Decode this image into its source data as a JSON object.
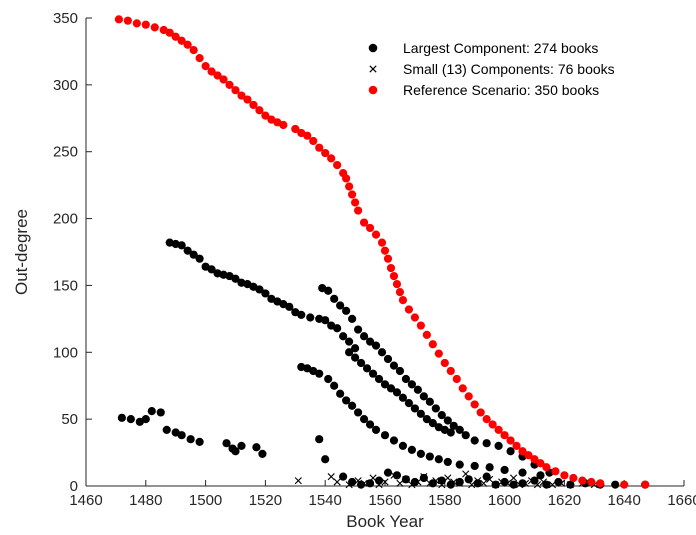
{
  "chart_data": {
    "type": "scatter",
    "xlabel": "Book Year",
    "ylabel": "Out-degree",
    "xlim": [
      1460,
      1660
    ],
    "ylim": [
      0,
      350
    ],
    "xticks": [
      1460,
      1480,
      1500,
      1520,
      1540,
      1560,
      1580,
      1600,
      1620,
      1640,
      1660
    ],
    "yticks": [
      0,
      50,
      100,
      150,
      200,
      250,
      300,
      350
    ],
    "grid": false,
    "legend_position": "top-right",
    "series": [
      {
        "name": "Largest Component: 274 books",
        "marker": "dot",
        "color": "#000000",
        "points": [
          [
            1472,
            51
          ],
          [
            1475,
            50
          ],
          [
            1478,
            48
          ],
          [
            1480,
            50
          ],
          [
            1482,
            56
          ],
          [
            1485,
            55
          ],
          [
            1487,
            42
          ],
          [
            1490,
            40
          ],
          [
            1492,
            38
          ],
          [
            1495,
            35
          ],
          [
            1498,
            33
          ],
          [
            1507,
            32
          ],
          [
            1509,
            28
          ],
          [
            1510,
            26
          ],
          [
            1512,
            30
          ],
          [
            1517,
            29
          ],
          [
            1519,
            24
          ],
          [
            1488,
            182
          ],
          [
            1490,
            181
          ],
          [
            1492,
            180
          ],
          [
            1494,
            176
          ],
          [
            1496,
            173
          ],
          [
            1498,
            170
          ],
          [
            1500,
            164
          ],
          [
            1502,
            162
          ],
          [
            1504,
            159
          ],
          [
            1506,
            158
          ],
          [
            1508,
            157
          ],
          [
            1510,
            155
          ],
          [
            1512,
            152
          ],
          [
            1514,
            151
          ],
          [
            1516,
            149
          ],
          [
            1518,
            147
          ],
          [
            1520,
            144
          ],
          [
            1522,
            140
          ],
          [
            1524,
            138
          ],
          [
            1526,
            136
          ],
          [
            1528,
            134
          ],
          [
            1530,
            130
          ],
          [
            1532,
            128
          ],
          [
            1535,
            126
          ],
          [
            1538,
            125
          ],
          [
            1540,
            124
          ],
          [
            1542,
            120
          ],
          [
            1544,
            118
          ],
          [
            1546,
            112
          ],
          [
            1548,
            108
          ],
          [
            1550,
            103
          ],
          [
            1539,
            148
          ],
          [
            1541,
            146
          ],
          [
            1543,
            140
          ],
          [
            1545,
            135
          ],
          [
            1547,
            131
          ],
          [
            1549,
            125
          ],
          [
            1551,
            117
          ],
          [
            1553,
            112
          ],
          [
            1555,
            108
          ],
          [
            1557,
            105
          ],
          [
            1559,
            100
          ],
          [
            1561,
            95
          ],
          [
            1563,
            90
          ],
          [
            1565,
            86
          ],
          [
            1567,
            80
          ],
          [
            1569,
            76
          ],
          [
            1571,
            72
          ],
          [
            1573,
            67
          ],
          [
            1575,
            63
          ],
          [
            1577,
            58
          ],
          [
            1579,
            53
          ],
          [
            1581,
            49
          ],
          [
            1583,
            45
          ],
          [
            1585,
            42
          ],
          [
            1587,
            38
          ],
          [
            1590,
            34
          ],
          [
            1594,
            32
          ],
          [
            1598,
            30
          ],
          [
            1602,
            26
          ],
          [
            1606,
            22
          ],
          [
            1610,
            16
          ],
          [
            1615,
            10
          ],
          [
            1532,
            89
          ],
          [
            1534,
            88
          ],
          [
            1536,
            86
          ],
          [
            1538,
            84
          ],
          [
            1541,
            80
          ],
          [
            1543,
            75
          ],
          [
            1545,
            69
          ],
          [
            1547,
            64
          ],
          [
            1549,
            60
          ],
          [
            1551,
            55
          ],
          [
            1553,
            50
          ],
          [
            1555,
            46
          ],
          [
            1557,
            42
          ],
          [
            1560,
            38
          ],
          [
            1563,
            34
          ],
          [
            1566,
            30
          ],
          [
            1569,
            27
          ],
          [
            1572,
            24
          ],
          [
            1575,
            22
          ],
          [
            1578,
            20
          ],
          [
            1581,
            18
          ],
          [
            1585,
            16
          ],
          [
            1590,
            15
          ],
          [
            1595,
            14
          ],
          [
            1600,
            12
          ],
          [
            1606,
            10
          ],
          [
            1612,
            8
          ],
          [
            1548,
            100
          ],
          [
            1550,
            96
          ],
          [
            1552,
            92
          ],
          [
            1554,
            88
          ],
          [
            1556,
            84
          ],
          [
            1558,
            80
          ],
          [
            1560,
            76
          ],
          [
            1562,
            73
          ],
          [
            1564,
            70
          ],
          [
            1566,
            66
          ],
          [
            1568,
            62
          ],
          [
            1570,
            58
          ],
          [
            1572,
            54
          ],
          [
            1574,
            50
          ],
          [
            1576,
            47
          ],
          [
            1578,
            44
          ],
          [
            1580,
            42
          ],
          [
            1582,
            40
          ],
          [
            1538,
            35
          ],
          [
            1540,
            20
          ],
          [
            1546,
            7
          ],
          [
            1549,
            3
          ],
          [
            1552,
            1
          ],
          [
            1555,
            2
          ],
          [
            1558,
            4
          ],
          [
            1561,
            10
          ],
          [
            1564,
            8
          ],
          [
            1567,
            5
          ],
          [
            1570,
            3
          ],
          [
            1573,
            6
          ],
          [
            1576,
            2
          ],
          [
            1579,
            4
          ],
          [
            1582,
            1
          ],
          [
            1585,
            3
          ],
          [
            1588,
            5
          ],
          [
            1591,
            2
          ],
          [
            1594,
            7
          ],
          [
            1597,
            1
          ],
          [
            1600,
            3
          ],
          [
            1603,
            1
          ],
          [
            1606,
            2
          ],
          [
            1610,
            4
          ],
          [
            1614,
            1
          ],
          [
            1618,
            3
          ],
          [
            1622,
            1
          ],
          [
            1627,
            2
          ],
          [
            1632,
            1
          ],
          [
            1637,
            1
          ],
          [
            1647,
            1
          ]
        ]
      },
      {
        "name": "Small (13) Components: 76 books",
        "marker": "x",
        "color": "#000000",
        "points": [
          [
            1531,
            4
          ],
          [
            1542,
            7
          ],
          [
            1544,
            3
          ],
          [
            1548,
            1
          ],
          [
            1551,
            4
          ],
          [
            1553,
            2
          ],
          [
            1556,
            6
          ],
          [
            1558,
            1
          ],
          [
            1560,
            3
          ],
          [
            1563,
            8
          ],
          [
            1565,
            2
          ],
          [
            1567,
            5
          ],
          [
            1569,
            1
          ],
          [
            1571,
            3
          ],
          [
            1573,
            7
          ],
          [
            1575,
            2
          ],
          [
            1577,
            4
          ],
          [
            1579,
            1
          ],
          [
            1581,
            6
          ],
          [
            1583,
            3
          ],
          [
            1585,
            2
          ],
          [
            1587,
            9
          ],
          [
            1589,
            1
          ],
          [
            1591,
            4
          ],
          [
            1593,
            2
          ],
          [
            1595,
            5
          ],
          [
            1597,
            1
          ],
          [
            1599,
            3
          ],
          [
            1601,
            2
          ],
          [
            1603,
            6
          ],
          [
            1605,
            1
          ],
          [
            1607,
            2
          ],
          [
            1609,
            4
          ],
          [
            1611,
            1
          ],
          [
            1613,
            3
          ],
          [
            1616,
            1
          ],
          [
            1619,
            2
          ],
          [
            1622,
            1
          ],
          [
            1626,
            2
          ],
          [
            1630,
            1
          ]
        ]
      },
      {
        "name": "Reference Scenario: 350 books",
        "marker": "dot",
        "color": "#ff0000",
        "points": [
          [
            1471,
            349
          ],
          [
            1474,
            348
          ],
          [
            1477,
            346
          ],
          [
            1480,
            345
          ],
          [
            1483,
            343
          ],
          [
            1486,
            341
          ],
          [
            1488,
            339
          ],
          [
            1490,
            336
          ],
          [
            1492,
            333
          ],
          [
            1494,
            330
          ],
          [
            1496,
            326
          ],
          [
            1498,
            320
          ],
          [
            1500,
            314
          ],
          [
            1502,
            310
          ],
          [
            1504,
            307
          ],
          [
            1506,
            304
          ],
          [
            1508,
            300
          ],
          [
            1510,
            296
          ],
          [
            1512,
            292
          ],
          [
            1514,
            289
          ],
          [
            1516,
            285
          ],
          [
            1518,
            281
          ],
          [
            1520,
            277
          ],
          [
            1522,
            274
          ],
          [
            1524,
            272
          ],
          [
            1526,
            270
          ],
          [
            1530,
            267
          ],
          [
            1532,
            264
          ],
          [
            1534,
            262
          ],
          [
            1536,
            258
          ],
          [
            1538,
            253
          ],
          [
            1540,
            249
          ],
          [
            1542,
            245
          ],
          [
            1544,
            240
          ],
          [
            1546,
            234
          ],
          [
            1547,
            230
          ],
          [
            1548,
            224
          ],
          [
            1549,
            218
          ],
          [
            1550,
            212
          ],
          [
            1551,
            206
          ],
          [
            1553,
            197
          ],
          [
            1555,
            193
          ],
          [
            1557,
            188
          ],
          [
            1559,
            182
          ],
          [
            1560,
            176
          ],
          [
            1561,
            170
          ],
          [
            1562,
            163
          ],
          [
            1563,
            157
          ],
          [
            1564,
            151
          ],
          [
            1565,
            145
          ],
          [
            1566,
            139
          ],
          [
            1568,
            132
          ],
          [
            1570,
            126
          ],
          [
            1572,
            120
          ],
          [
            1574,
            113
          ],
          [
            1576,
            106
          ],
          [
            1578,
            99
          ],
          [
            1580,
            92
          ],
          [
            1582,
            86
          ],
          [
            1584,
            80
          ],
          [
            1586,
            73
          ],
          [
            1588,
            67
          ],
          [
            1590,
            61
          ],
          [
            1592,
            55
          ],
          [
            1594,
            50
          ],
          [
            1596,
            46
          ],
          [
            1598,
            42
          ],
          [
            1600,
            38
          ],
          [
            1602,
            34
          ],
          [
            1604,
            30
          ],
          [
            1606,
            26
          ],
          [
            1608,
            23
          ],
          [
            1610,
            20
          ],
          [
            1612,
            17
          ],
          [
            1614,
            14
          ],
          [
            1617,
            11
          ],
          [
            1620,
            8
          ],
          [
            1623,
            6
          ],
          [
            1626,
            4
          ],
          [
            1629,
            3
          ],
          [
            1632,
            2
          ],
          [
            1640,
            1
          ],
          [
            1647,
            1
          ]
        ]
      }
    ]
  }
}
